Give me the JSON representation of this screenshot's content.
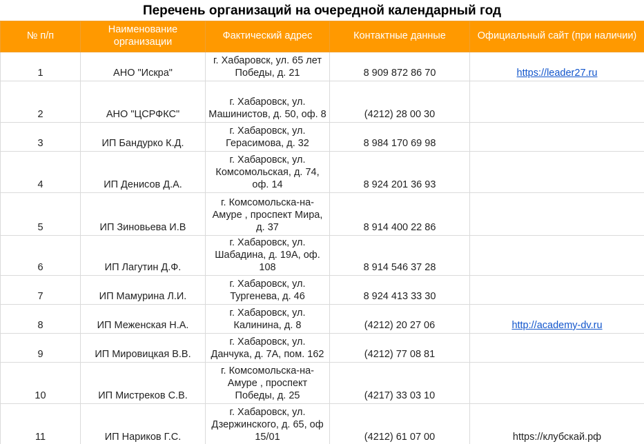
{
  "title": "Перечень организаций на очередной календарный год",
  "columns": [
    "№ п/п",
    "Наименование организации",
    "Фактический адрес",
    "Контактные данные",
    "Официальный сайт (при наличии)"
  ],
  "rows": [
    {
      "n": "1",
      "name": "АНО \"Искра\"",
      "address": "г. Хабаровск, ул. 65 лет Победы, д. 21",
      "contact": "8 909 872 86 70",
      "site": "https://leader27.ru",
      "link": true
    },
    {
      "n": "2",
      "name": "АНО \"ЦСРФКС\"",
      "address": "г. Хабаровск, ул. Машинистов, д. 50, оф. 8",
      "contact": "(4212) 28 00 30",
      "site": ""
    },
    {
      "n": "3",
      "name": "ИП Бандурко К.Д.",
      "address": "г. Хабаровск, ул. Герасимова, д. 32",
      "contact": "8 984 170 69 98",
      "site": ""
    },
    {
      "n": "4",
      "name": "ИП Денисов Д.А.",
      "address": "г. Хабаровск, ул. Комсомольская, д. 74, оф. 14",
      "contact": "8 924 201 36 93",
      "site": ""
    },
    {
      "n": "5",
      "name": "ИП Зиновьева И.В",
      "address": "г. Комсомольска-на-Амуре , проспект Мира, д. 37",
      "contact": "8 914 400 22 86",
      "site": ""
    },
    {
      "n": "6",
      "name": "ИП Лагутин Д.Ф.",
      "address": "г. Хабаровск, ул. Шабадина, д. 19А, оф. 108",
      "contact": "8 914 546 37 28",
      "site": ""
    },
    {
      "n": "7",
      "name": "ИП Мамурина Л.И.",
      "address": "г. Хабаровск, ул. Тургенева, д. 46",
      "contact": "8 924 413 33 30",
      "site": ""
    },
    {
      "n": "8",
      "name": "ИП Меженская Н.А.",
      "address": "г. Хабаровск, ул. Калинина, д. 8",
      "contact": "(4212) 20 27 06",
      "site": "http://academy-dv.ru",
      "link": true
    },
    {
      "n": "9",
      "name": "ИП Мировицкая В.В.",
      "address": "г. Хабаровск, ул. Данчука, д. 7А, пом. 162",
      "contact": "(4212) 77 08 81",
      "site": ""
    },
    {
      "n": "10",
      "name": "ИП Мистреков С.В.",
      "address": "г. Комсомольска-на-Амуре , проспект Победы, д. 25",
      "contact": "(4217) 33 03 10",
      "site": ""
    },
    {
      "n": "11",
      "name": "ИП Нариков Г.С.",
      "address": "г. Хабаровск, ул. Дзержинского, д. 65, оф 15/01",
      "contact": "(4212) 61 07 00",
      "site": "https://клубскай.рф",
      "link": false
    }
  ]
}
